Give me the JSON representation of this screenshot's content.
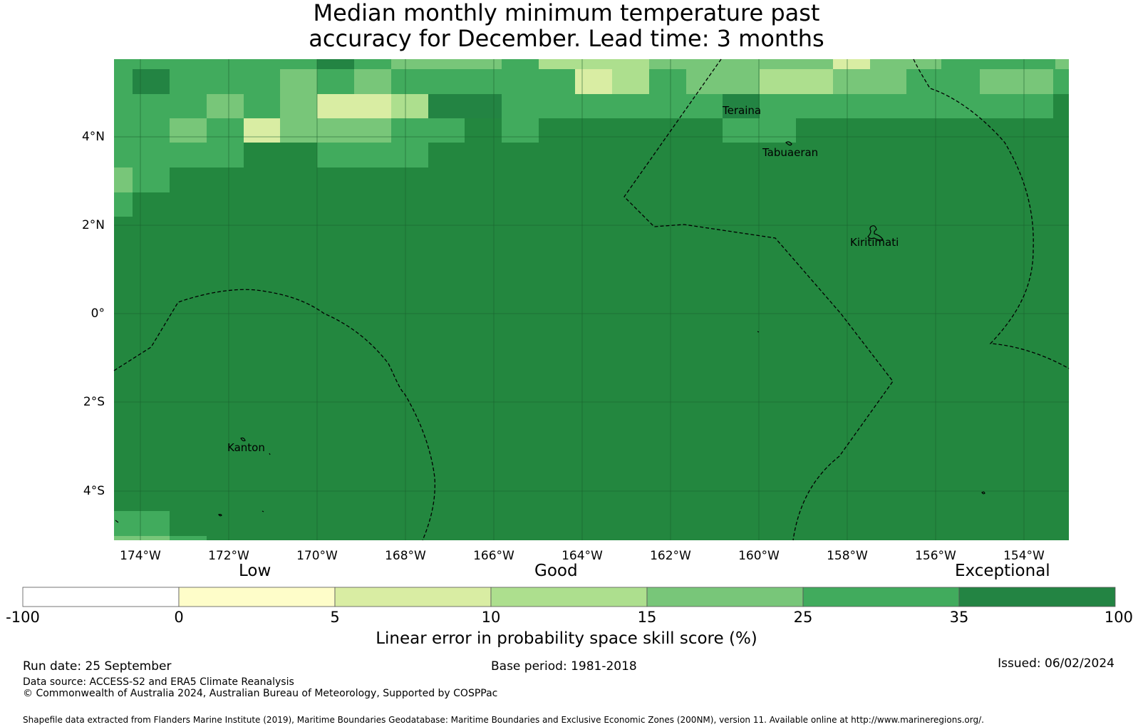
{
  "title": {
    "line1": "Median monthly minimum temperature past",
    "line2": "accuracy for December. Lead time: 3 months"
  },
  "map": {
    "lat_labels": [
      "4°N",
      "2°N",
      "0°",
      "2°S",
      "4°S"
    ],
    "lat_values": [
      4,
      2,
      0,
      -2,
      -4
    ],
    "lon_labels": [
      "174°W",
      "172°W",
      "170°W",
      "168°W",
      "166°W",
      "164°W",
      "162°W",
      "160°W",
      "158°W",
      "156°W",
      "154°W"
    ],
    "lon_values": [
      -174,
      -172,
      -170,
      -168,
      -166,
      -164,
      -162,
      -160,
      -158,
      -156,
      -154
    ],
    "extent": {
      "lon_min": -174.6,
      "lon_max": -153.0,
      "lat_min": -5.1,
      "lat_max": 5.8
    },
    "places": [
      {
        "name": "Teraina",
        "label": "Teraina",
        "lon": -160.4,
        "lat": 4.7
      },
      {
        "name": "Tabuaeran",
        "label": "Tabuaeran",
        "lon": -159.4,
        "lat": 3.9
      },
      {
        "name": "Kiritimati",
        "label": "Kiritimati",
        "lon": -157.4,
        "lat": 1.9
      },
      {
        "name": "Kanton",
        "label": "Kanton",
        "lon": -171.7,
        "lat": -2.8
      }
    ],
    "background_color": "#23873f"
  },
  "colorbar": {
    "category_labels": {
      "low": "Low",
      "good": "Good",
      "exceptional": "Exceptional"
    },
    "ticks": [
      "-100",
      "0",
      "5",
      "10",
      "15",
      "25",
      "35",
      "100"
    ],
    "colors": [
      "#ffffff",
      "#fefdc9",
      "#d9eda3",
      "#addf8e",
      "#78c679",
      "#41ab5d",
      "#238443"
    ],
    "title": "Linear error in probability space skill score (%)"
  },
  "footer": {
    "run_date": "Run date: 25 September",
    "base_period": "Base period: 1981-2018",
    "issued": "Issued: 06/02/2024",
    "data_source": "Data source: ACCESS-S2 and ERA5 Climate Reanalysis",
    "copyright": "© Commonwealth of Australia 2024, Australian Bureau of Meteorology, Supported by COSPPac",
    "shapefile": "Shapefile data extracted from Flanders Marine Institute (2019), Maritime Boundaries Geodatabase: Maritime Boundaries and Exclusive Economic Zones (200NM), version 11. Available online at http://www.marineregions.org/."
  }
}
